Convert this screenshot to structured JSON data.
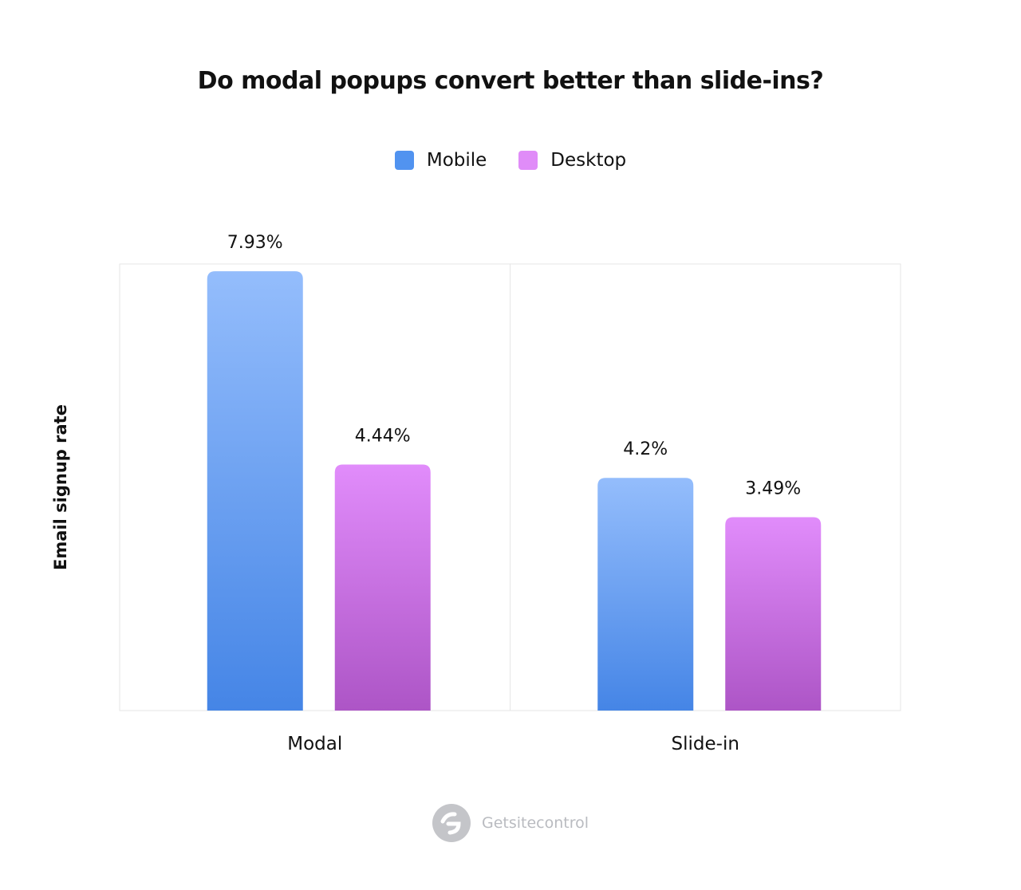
{
  "chart_data": {
    "type": "bar",
    "title": "Do modal popups convert better than slide-ins?",
    "ylabel": "Email signup rate",
    "xlabel": "",
    "categories": [
      "Modal",
      "Slide-in"
    ],
    "series": [
      {
        "name": "Mobile",
        "values": [
          7.93,
          4.2
        ],
        "labels": [
          "7.93%",
          "4.2%"
        ],
        "color": "#5193f0",
        "gradient": [
          "#94bdfc",
          "#4585e6"
        ]
      },
      {
        "name": "Desktop",
        "values": [
          4.44,
          3.49
        ],
        "labels": [
          "4.44%",
          "3.49%"
        ],
        "color": "#e08cf8",
        "gradient": [
          "#e18cfb",
          "#ad55c6"
        ]
      }
    ],
    "ylim": [
      0,
      8
    ],
    "grid": false,
    "legend_position": "top-center"
  },
  "footer": {
    "brand": "Getsitecontrol",
    "logo_icon": "getsitecontrol-logo-icon"
  }
}
